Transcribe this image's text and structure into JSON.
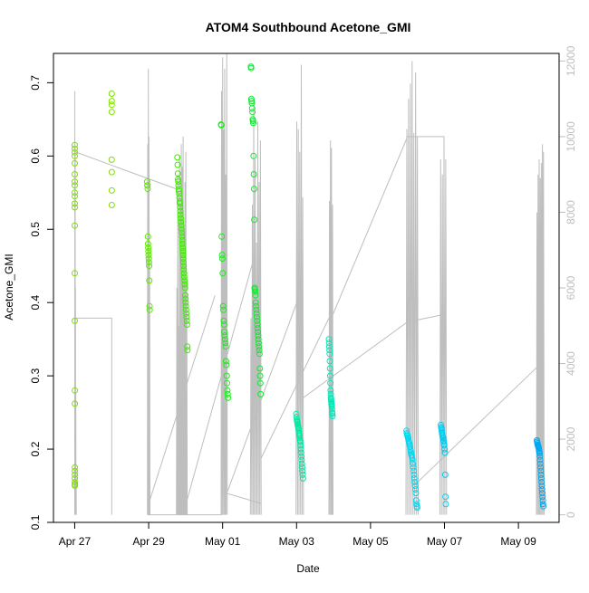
{
  "chart_data": {
    "type": "scatter",
    "title": "ATOM4 Southbound Acetone_GMI",
    "xlabel": "Date",
    "ylabel": "Acetone_GMI",
    "x_ticks": [
      {
        "date": "2018-04-27",
        "label": "Apr 27"
      },
      {
        "date": "2018-04-29",
        "label": "Apr 29"
      },
      {
        "date": "2018-05-01",
        "label": "May 01"
      },
      {
        "date": "2018-05-03",
        "label": "May 03"
      },
      {
        "date": "2018-05-05",
        "label": "May 05"
      },
      {
        "date": "2018-05-07",
        "label": "May 07"
      },
      {
        "date": "2018-05-09",
        "label": "May 09"
      }
    ],
    "xlim": [
      "2018-04-26T10:12",
      "2018-05-10T02:24"
    ],
    "ylim": [
      0.1,
      0.74
    ],
    "y_ticks": [
      0.1,
      0.2,
      0.3,
      0.4,
      0.5,
      0.6,
      0.7
    ],
    "y2_ticks": [
      0,
      2000,
      4000,
      6000,
      8000,
      10000,
      12000
    ],
    "y2lim": [
      -200,
      12200
    ],
    "grid": false,
    "legend": "none",
    "colors": {
      "secondary_axis": "#bebebe",
      "altitude_line": "#bebebe",
      "frame": "#000000"
    },
    "flights": [
      {
        "start": "2018-04-27T00:00",
        "end": "2018-04-27T00:05",
        "color": "#7fe000",
        "values": [
          0.615,
          0.61,
          0.605,
          0.6,
          0.59,
          0.575,
          0.56,
          0.565,
          0.55,
          0.545,
          0.535,
          0.53,
          0.505,
          0.44,
          0.375,
          0.28,
          0.262,
          0.175,
          0.17,
          0.165,
          0.16,
          0.155,
          0.152,
          0.15
        ]
      },
      {
        "start": "2018-04-28T00:00",
        "end": "2018-04-28T00:05",
        "color": "#7fe000",
        "values": [
          0.685,
          0.675,
          0.67,
          0.66,
          0.595,
          0.578,
          0.553,
          0.533
        ]
      },
      {
        "start": "2018-04-28T23:00",
        "end": "2018-04-29T00:40",
        "color": "#5ee800",
        "values": [
          0.565,
          0.56,
          0.56,
          0.555,
          0.49,
          0.48,
          0.475,
          0.47,
          0.465,
          0.46,
          0.455,
          0.45,
          0.43,
          0.395,
          0.39
        ]
      },
      {
        "start": "2018-04-29T18:40",
        "end": "2018-04-30T01:10",
        "color": "#3ee800",
        "values": [
          0.598,
          0.588,
          0.576,
          0.568,
          0.565,
          0.56,
          0.555,
          0.552,
          0.548,
          0.543,
          0.538,
          0.535,
          0.53,
          0.525,
          0.52,
          0.515,
          0.51,
          0.505,
          0.5,
          0.495,
          0.49,
          0.485,
          0.48,
          0.475,
          0.47,
          0.465,
          0.46,
          0.455,
          0.45,
          0.445,
          0.44,
          0.435,
          0.43,
          0.425,
          0.42,
          0.41,
          0.405,
          0.4,
          0.395,
          0.39,
          0.385,
          0.38,
          0.375,
          0.37,
          0.34,
          0.335
        ]
      },
      {
        "start": "2018-04-30T23:00",
        "end": "2018-05-01T03:30",
        "color": "#1ee81e",
        "values": [
          0.643,
          0.642,
          0.49,
          0.465,
          0.46,
          0.44,
          0.395,
          0.39,
          0.375,
          0.37,
          0.36,
          0.355,
          0.35,
          0.345,
          0.34,
          0.32,
          0.315,
          0.3,
          0.29,
          0.28,
          0.275,
          0.27
        ]
      },
      {
        "start": "2018-05-01T18:20",
        "end": "2018-05-02T00:40",
        "color": "#10e830",
        "values": [
          0.722,
          0.72,
          0.678,
          0.675,
          0.672,
          0.665,
          0.66,
          0.65,
          0.648,
          0.645,
          0.6,
          0.575,
          0.555,
          0.513,
          0.42,
          0.418,
          0.415,
          0.41,
          0.4,
          0.395,
          0.39,
          0.385,
          0.38,
          0.375,
          0.37,
          0.365,
          0.36,
          0.355,
          0.35,
          0.345,
          0.34,
          0.335,
          0.33,
          0.31,
          0.3,
          0.29,
          0.275
        ]
      },
      {
        "start": "2018-05-02T23:50",
        "end": "2018-05-03T04:10",
        "color": "#00e8a0",
        "values": [
          0.248,
          0.244,
          0.24,
          0.238,
          0.236,
          0.234,
          0.232,
          0.23,
          0.228,
          0.225,
          0.222,
          0.22,
          0.218,
          0.215,
          0.212,
          0.21,
          0.205,
          0.2,
          0.195,
          0.19,
          0.185,
          0.18,
          0.175,
          0.17,
          0.165,
          0.16
        ]
      },
      {
        "start": "2018-05-03T21:00",
        "end": "2018-05-03T23:20",
        "color": "#00e8b8",
        "values": [
          0.35,
          0.345,
          0.34,
          0.335,
          0.33,
          0.32,
          0.31,
          0.3,
          0.29,
          0.28,
          0.275,
          0.27,
          0.268,
          0.265,
          0.262,
          0.26,
          0.258,
          0.255,
          0.25,
          0.248,
          0.245
        ]
      },
      {
        "start": "2018-05-05T23:20",
        "end": "2018-05-06T06:20",
        "color": "#00d8f0",
        "values": [
          0.225,
          0.222,
          0.22,
          0.218,
          0.216,
          0.214,
          0.212,
          0.21,
          0.208,
          0.205,
          0.203,
          0.2,
          0.198,
          0.195,
          0.192,
          0.19,
          0.188,
          0.185,
          0.18,
          0.175,
          0.17,
          0.165,
          0.16,
          0.155,
          0.15,
          0.145,
          0.14,
          0.13,
          0.125,
          0.122,
          0.12
        ]
      },
      {
        "start": "2018-05-06T21:40",
        "end": "2018-05-07T00:50",
        "color": "#00ccf0",
        "values": [
          0.233,
          0.23,
          0.228,
          0.225,
          0.222,
          0.22,
          0.218,
          0.216,
          0.215,
          0.212,
          0.21,
          0.207,
          0.205,
          0.2,
          0.195,
          0.165,
          0.135,
          0.125
        ]
      },
      {
        "start": "2018-05-09T12:00",
        "end": "2018-05-09T16:10",
        "color": "#00a8f0",
        "values": [
          0.212,
          0.21,
          0.208,
          0.206,
          0.205,
          0.204,
          0.203,
          0.202,
          0.2,
          0.198,
          0.196,
          0.194,
          0.19,
          0.185,
          0.18,
          0.175,
          0.17,
          0.165,
          0.16,
          0.155,
          0.15,
          0.145,
          0.14,
          0.135,
          0.13,
          0.125,
          0.122
        ]
      }
    ],
    "altitude_profiles": [
      {
        "start": "2018-04-27T00:00",
        "end": "2018-04-27T01:00",
        "peaks": [
          11200,
          9500,
          6000,
          3200,
          1200
        ]
      },
      {
        "start": "2018-04-28T23:10",
        "end": "2018-04-29T00:50",
        "peaks": [
          9800,
          11800,
          10000,
          7000
        ]
      },
      {
        "start": "2018-04-29T18:00",
        "end": "2018-04-30T01:00",
        "peaks": [
          6000,
          9000,
          5000,
          9500,
          8200,
          9800,
          9200,
          10000,
          7600,
          8800,
          9600,
          6200
        ]
      },
      {
        "start": "2018-04-30T23:00",
        "end": "2018-05-01T03:00",
        "peaks": [
          11200,
          12100,
          10200,
          11800,
          9000,
          12200
        ]
      },
      {
        "start": "2018-05-01T18:00",
        "end": "2018-05-02T01:00",
        "peaks": [
          5200,
          8200,
          11000,
          9400,
          7200,
          10400,
          8800,
          9900
        ]
      },
      {
        "start": "2018-05-02T23:40",
        "end": "2018-05-03T04:30",
        "peaks": [
          10400,
          10200,
          9600,
          11900,
          8400
        ]
      },
      {
        "start": "2018-05-03T21:00",
        "end": "2018-05-03T23:40",
        "peaks": [
          8300,
          9900,
          9700,
          8200
        ]
      },
      {
        "start": "2018-05-05T23:00",
        "end": "2018-05-06T07:00",
        "peaks": [
          10200,
          11000,
          11400,
          12000,
          10100,
          11700,
          10000
        ]
      },
      {
        "start": "2018-05-06T21:00",
        "end": "2018-05-07T01:20",
        "peaks": [
          9400,
          9000,
          10000,
          9400
        ]
      },
      {
        "start": "2018-05-09T11:40",
        "end": "2018-05-09T16:40",
        "peaks": [
          8000,
          9000,
          9400,
          8900,
          9300,
          9800,
          9600
        ]
      }
    ],
    "altitude_transits": [
      [
        [
          "2018-04-26T23:30",
          5200
        ],
        [
          "2018-04-28T00:00",
          5200
        ],
        [
          "2018-04-28T00:00",
          0
        ]
      ],
      [
        [
          "2018-04-27T00:05",
          9600
        ],
        [
          "2018-04-29T19:00",
          8600
        ]
      ],
      [
        [
          "2018-04-29T00:50",
          400
        ],
        [
          "2018-04-30T19:00",
          5800
        ]
      ],
      [
        [
          "2018-04-28T23:20",
          0
        ],
        [
          "2018-04-30T23:30",
          0
        ]
      ],
      [
        [
          "2018-04-30T01:00",
          400
        ],
        [
          "2018-05-01T19:00",
          6600
        ]
      ],
      [
        [
          "2018-05-01T00:00",
          600
        ],
        [
          "2018-05-02T01:00",
          300
        ]
      ],
      [
        [
          "2018-05-01T03:00",
          600
        ],
        [
          "2018-05-03T00:00",
          5600
        ]
      ],
      [
        [
          "2018-05-02T01:00",
          1500
        ],
        [
          "2018-05-03T21:00",
          5200
        ]
      ],
      [
        [
          "2018-05-03T04:30",
          3100
        ],
        [
          "2018-05-06T00:00",
          5100
        ],
        [
          "2018-05-07T00:00",
          5300
        ]
      ],
      [
        [
          "2018-05-03T23:40",
          5300
        ],
        [
          "2018-05-06T00:00",
          10000
        ],
        [
          "2018-05-07T00:00",
          10000
        ]
      ],
      [
        [
          "2018-05-06T05:00",
          800
        ],
        [
          "2018-05-09T12:00",
          3900
        ]
      ]
    ]
  }
}
